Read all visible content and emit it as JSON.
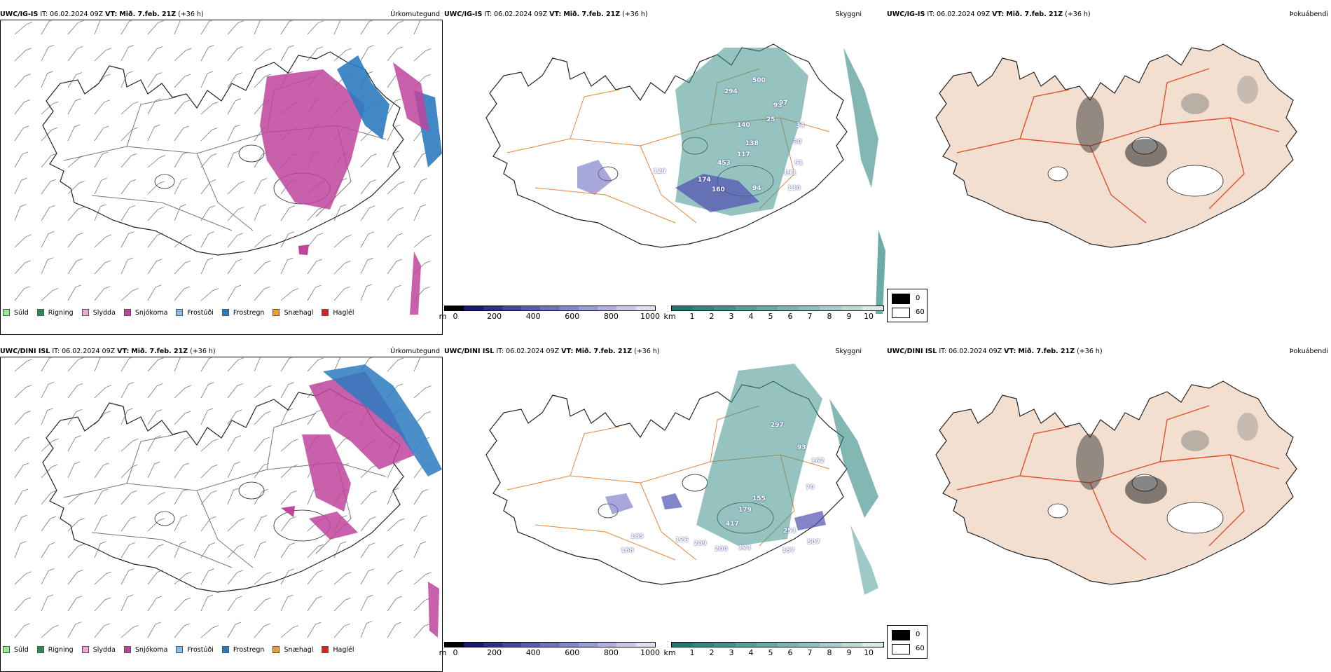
{
  "rows": [
    {
      "model": "UWC/IG-IS",
      "it_label": "IT:",
      "it_value": "06.02.2024 09Z",
      "vt_label": "VT:",
      "vt_value": "Mið. 7.feb. 21Z",
      "lead": "(+36 h)",
      "precip_title": "Úrkomutegund",
      "cloud_title": "Skyggni",
      "fog_title": "Þokuábendi",
      "cloud_labels": [
        "294",
        "500",
        "93",
        "97",
        "25",
        "140",
        "138",
        "117",
        "34",
        "30",
        "453",
        "129",
        "174",
        "160",
        "94",
        "191",
        "130",
        "51"
      ]
    },
    {
      "model": "UWC/DINI ISL",
      "it_label": "IT:",
      "it_value": "06.02.2024 09Z",
      "vt_label": "VT:",
      "vt_value": "Mið. 7.feb. 21Z",
      "lead": "(+36 h)",
      "precip_title": "Úrkomutegund",
      "cloud_title": "Skyggni",
      "fog_title": "Þokuábendi",
      "cloud_labels": [
        "297",
        "93",
        "162",
        "70",
        "155",
        "179",
        "417",
        "251",
        "507",
        "209",
        "200",
        "121",
        "157",
        "126",
        "168",
        "185"
      ]
    }
  ],
  "precip_legend": [
    {
      "label": "Súld",
      "color": "#90ee90"
    },
    {
      "label": "Rigning",
      "color": "#2e8b57"
    },
    {
      "label": "Slydda",
      "color": "#f4a6d8"
    },
    {
      "label": "Snjókoma",
      "color": "#c0449c"
    },
    {
      "label": "Frostúði",
      "color": "#87bde8"
    },
    {
      "label": "Frostregn",
      "color": "#2b7bc0"
    },
    {
      "label": "Snæhagl",
      "color": "#f0a020"
    },
    {
      "label": "Haglél",
      "color": "#e02020"
    }
  ],
  "ceiling_bar": {
    "unit": "m",
    "ticks": [
      "0",
      "200",
      "400",
      "600",
      "800",
      "1000"
    ],
    "colors": [
      "#000000",
      "#1a1a6e",
      "#30308a",
      "#4545a0",
      "#5a5ab0",
      "#7070c0",
      "#8585cc",
      "#9a9ad6",
      "#b0b0e0",
      "#c8c8ea",
      "#e0e0f4"
    ]
  },
  "vis_bar": {
    "unit": "km",
    "ticks": [
      "1",
      "2",
      "3",
      "4",
      "5",
      "6",
      "7",
      "8",
      "9",
      "10"
    ],
    "colors": [
      "#1f7a72",
      "#2e8780",
      "#3e948d",
      "#509f99",
      "#63aaa5",
      "#78b6b1",
      "#8ec2be",
      "#a4cfcb",
      "#bcdcd9",
      "#d6eae8"
    ]
  },
  "fog_legend": [
    {
      "label": "0",
      "color": "#000000"
    },
    {
      "label": "60",
      "color": "#ffffff"
    }
  ]
}
